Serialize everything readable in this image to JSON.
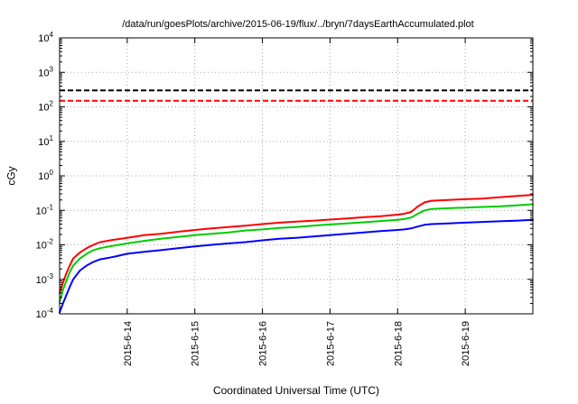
{
  "page": {
    "title": "/data/run/goesPlots/archive/2015-06-19/flux/../bryn/7daysEarthAccumulated.plot",
    "xlabel": "Coordinated Universal Time (UTC)",
    "ylabel": "cGy"
  },
  "chart_data": {
    "type": "line",
    "title": "/data/run/goesPlots/archive/2015-06-19/flux/../bryn/7daysEarthAccumulated.plot",
    "xlabel": "Coordinated Universal Time (UTC)",
    "ylabel": "cGy",
    "y_scale": "log",
    "grid": true,
    "legend": "none",
    "xlim": [
      0,
      7
    ],
    "ylim_exp": [
      -4,
      4
    ],
    "x_ticks": [
      {
        "pos": 1,
        "label": "2015-6-14"
      },
      {
        "pos": 2,
        "label": "2015-6-15"
      },
      {
        "pos": 3,
        "label": "2015-6-16"
      },
      {
        "pos": 4,
        "label": "2015-6-17"
      },
      {
        "pos": 5,
        "label": "2015-6-18"
      },
      {
        "pos": 6,
        "label": "2015-6-19"
      }
    ],
    "y_tick_exponents": [
      4,
      3,
      2,
      1,
      0,
      -1,
      -2,
      -3,
      -4
    ],
    "thresholds": [
      {
        "name": "black-dashed-limit",
        "color": "#000000",
        "value": 300
      },
      {
        "name": "red-dashed-limit",
        "color": "#ff0000",
        "value": 150
      }
    ],
    "x": [
      0,
      0.05,
      0.1,
      0.15,
      0.2,
      0.3,
      0.4,
      0.5,
      0.6,
      0.8,
      1,
      1.25,
      1.5,
      1.75,
      2,
      2.25,
      2.5,
      2.75,
      3,
      3.25,
      3.5,
      3.75,
      4,
      4.25,
      4.5,
      4.75,
      5,
      5.1,
      5.2,
      5.3,
      5.4,
      5.5,
      5.75,
      6,
      6.25,
      6.5,
      6.75,
      7
    ],
    "series": [
      {
        "name": "red",
        "color": "#ff0000",
        "values": [
          0.0004,
          0.0008,
          0.0015,
          0.0025,
          0.004,
          0.006,
          0.008,
          0.01,
          0.012,
          0.014,
          0.016,
          0.019,
          0.021,
          0.024,
          0.027,
          0.03,
          0.033,
          0.036,
          0.04,
          0.044,
          0.047,
          0.05,
          0.054,
          0.058,
          0.063,
          0.068,
          0.075,
          0.08,
          0.09,
          0.13,
          0.17,
          0.19,
          0.2,
          0.21,
          0.22,
          0.24,
          0.26,
          0.28
        ]
      },
      {
        "name": "green",
        "color": "#00cc00",
        "values": [
          0.00022,
          0.0005,
          0.0009,
          0.0016,
          0.0025,
          0.004,
          0.0055,
          0.007,
          0.008,
          0.0095,
          0.011,
          0.013,
          0.015,
          0.017,
          0.019,
          0.021,
          0.023,
          0.026,
          0.028,
          0.031,
          0.033,
          0.036,
          0.039,
          0.042,
          0.045,
          0.049,
          0.053,
          0.056,
          0.062,
          0.08,
          0.1,
          0.11,
          0.115,
          0.12,
          0.125,
          0.13,
          0.14,
          0.15
        ]
      },
      {
        "name": "blue",
        "color": "#0000ff",
        "values": [
          0.00011,
          0.0002,
          0.00035,
          0.0006,
          0.001,
          0.0018,
          0.0025,
          0.0032,
          0.0038,
          0.0045,
          0.0055,
          0.0063,
          0.007,
          0.008,
          0.009,
          0.01,
          0.011,
          0.012,
          0.0135,
          0.015,
          0.016,
          0.0175,
          0.019,
          0.021,
          0.023,
          0.025,
          0.027,
          0.028,
          0.03,
          0.034,
          0.038,
          0.04,
          0.042,
          0.044,
          0.046,
          0.048,
          0.05,
          0.053
        ]
      }
    ]
  }
}
